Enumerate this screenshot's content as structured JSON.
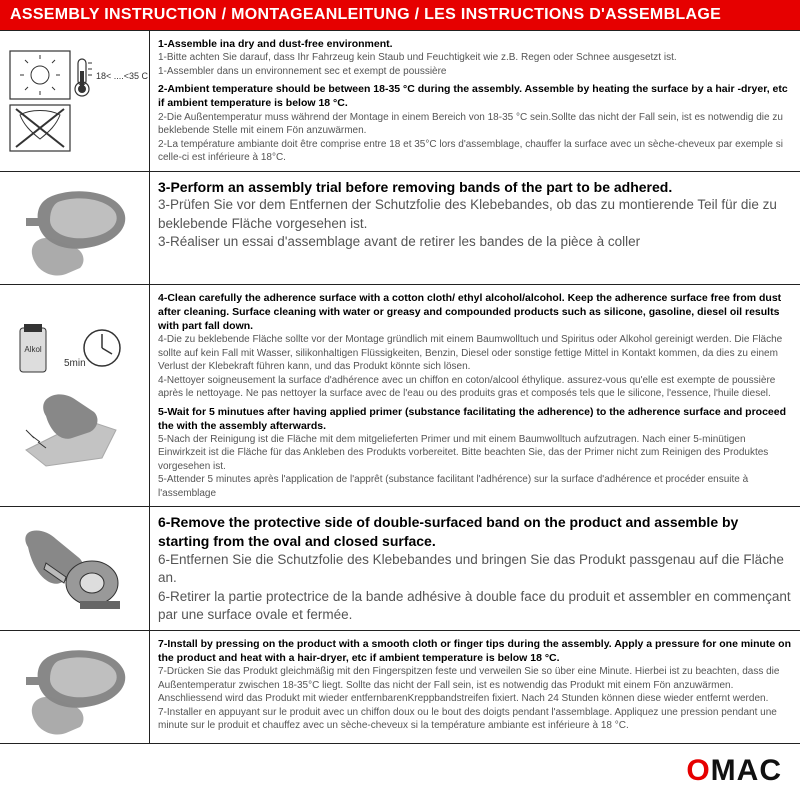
{
  "colors": {
    "accent": "#e60000",
    "text": "#222",
    "muted": "#555555",
    "border": "#222222",
    "bg": "#ffffff",
    "iconGray": "#888888"
  },
  "header": {
    "title": "ASSEMBLY INSTRUCTION / MONTAGEANLEITUNG / LES INSTRUCTIONS D'ASSEMBLAGE"
  },
  "rows": [
    {
      "icon": "temp",
      "tempLabel": "18< ....<35 C",
      "blocks": [
        {
          "en": "1-Assemble ina dry and dust-free environment.",
          "de": "1-Bitte achten Sie darauf, dass Ihr Fahrzeug kein Staub und Feuchtigkeit wie z.B. Regen oder Schnee ausgesetzt ist.",
          "fr": "1-Assembler dans un environnement sec et exempt de poussière"
        },
        {
          "en": "2-Ambient temperature should be between 18-35 °C  during the assembly. Assemble by heating the surface by a hair -dryer, etc if ambient temperature is below 18 °C.",
          "de": "2-Die Außentemperatur muss während der Montage in einem Bereich von 18-35 °C  sein.Sollte das nicht der Fall sein, ist es notwendig die zu beklebende Stelle mit einem Fön anzuwärmen.",
          "fr": "2-La température ambiante doit être comprise entre 18 et 35°C lors d'assemblage, chauffer la surface avec un sèche-cheveux par exemple si celle-ci est inférieure à 18°C."
        }
      ]
    },
    {
      "icon": "mirror1",
      "large": true,
      "blocks": [
        {
          "en": "3-Perform an assembly trial before removing bands of the part to be adhered.",
          "de": "3-Prüfen Sie vor dem Entfernen der Schutzfolie des Klebebandes, ob das zu montierende Teil für die zu beklebende Fläche vorgesehen ist.",
          "fr": "3-Réaliser un essai d'assemblage avant de retirer les bandes de la pièce à coller"
        }
      ]
    },
    {
      "icon": "clean",
      "bottleLabel": "Alkol",
      "timerLabel": "5min",
      "blocks": [
        {
          "en": "4-Clean carefully the adherence surface with a cotton cloth/ ethyl alcohol/alcohol. Keep the adherence surface free from dust after cleaning. Surface cleaning with water or greasy and compounded products such as silicone, gasoline, diesel oil results with part fall down.",
          "de": "4-Die zu beklebende Fläche sollte vor der Montage gründlich mit einem Baumwolltuch und Spiritus oder Alkohol gereinigt werden. Die Fläche sollte auf kein Fall mit Wasser, silikonhaltigen Flüssigkeiten, Benzin, Diesel oder sonstige fettige Mittel in Kontakt kommen, da dies zu einem Verlust der Klebekraft führen kann, und das Produkt könnte sich lösen.",
          "fr": "4-Nettoyer soigneusement la surface d'adhérence avec un chiffon en coton/alcool éthylique. assurez-vous qu'elle est exempte de poussière après le nettoyage. Ne pas nettoyer la surface avec de l'eau ou des produits gras et composés tels que le silicone, l'essence, l'huile diesel."
        },
        {
          "en": "5-Wait for 5 minutues after having applied primer (substance facilitating the adherence) to the adherence surface and proceed the with the assembly afterwards.",
          "de": "5-Nach der Reinigung ist die Fläche mit dem mitgelieferten Primer und mit einem Baumwolltuch aufzutragen. Nach einer 5-minütigen Einwirkzeit ist die Fläche für das Ankleben des Produkts vorbereitet. Bitte beachten Sie, das der Primer nicht zum Reinigen des Produktes vorgesehen ist.",
          "fr": "5-Attender 5 minutes après l'application de l'apprêt (substance facilitant l'adhérence) sur la surface d'adhérence et procéder ensuite à l'assemblage"
        }
      ]
    },
    {
      "icon": "tape",
      "large": true,
      "blocks": [
        {
          "en": "6-Remove the protective side of double-surfaced band on the product and assemble by starting from the oval and closed surface.",
          "de": "6-Entfernen Sie die Schutzfolie des Klebebandes und bringen Sie das Produkt passgenau auf die Fläche an.",
          "fr": "6-Retirer la partie protectrice de la bande adhésive à double face du produit et assembler en commençant par une surface ovale et fermée."
        }
      ]
    },
    {
      "icon": "mirror2",
      "blocks": [
        {
          "en": "7-Install by pressing on the product with a smooth cloth or finger tips during the assembly. Apply a pressure for one minute on the product and heat with a hair-dryer, etc if ambient temperature is below 18 °C.",
          "de": "7-Drücken Sie das Produkt gleichmäßig mit den Fingerspitzen feste und verweilen Sie so über eine Minute. Hierbei ist zu beachten, dass die Außentemperatur zwischen 18-35°C liegt. Sollte das nicht der Fall sein, ist es notwendig das Produkt mit einem Fön anzuwärmen. Anschliessend wird das Produkt mit wieder entfernbarenKreppbandstreifen fixiert. Nach 24 Stunden können diese wieder entfernt werden.",
          "fr": "7-Installer en appuyant sur le produit avec un chiffon doux ou le bout des doigts pendant l'assemblage. Appliquez une pression pendant une minute sur le produit et chauffez avec un sèche-cheveux si la température ambiante est inférieure à 18 °C."
        }
      ]
    }
  ],
  "footer": {
    "logoText": "OMAC"
  }
}
